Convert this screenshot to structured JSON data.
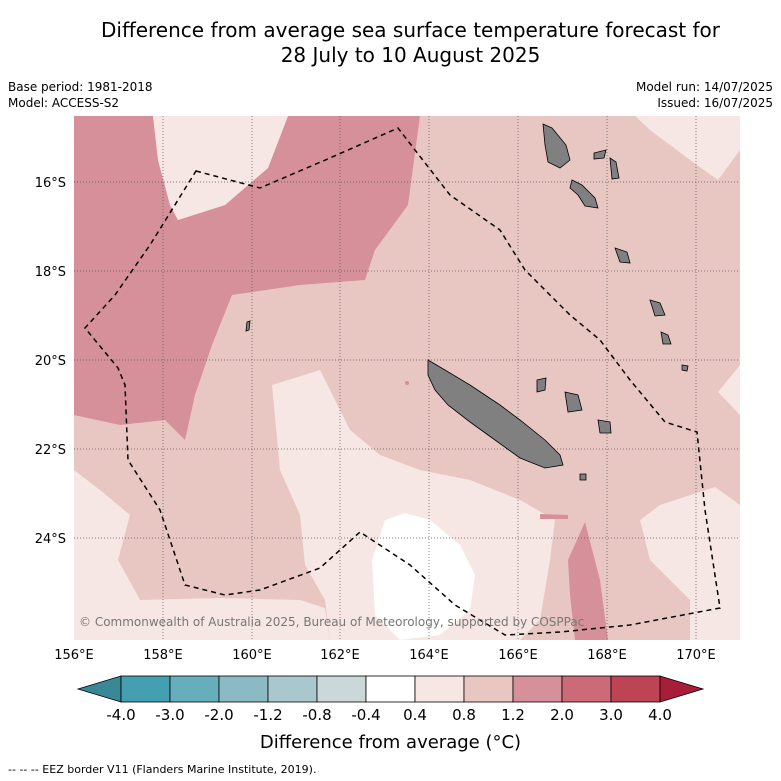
{
  "title_line1": "Difference from average sea surface temperature forecast for",
  "title_line2": "28 July to 10 August 2025",
  "base_period": "Base period: 1981-2018",
  "model": "Model: ACCESS-S2",
  "model_run": "Model run: 14/07/2025",
  "issued": "Issued: 16/07/2025",
  "copyright": "© Commonwealth of Australia 2025, Bureau of Meteorology, supported by COSPPac",
  "lon_ticks": [
    "156°E",
    "158°E",
    "160°E",
    "162°E",
    "164°E",
    "166°E",
    "168°E",
    "170°E"
  ],
  "lat_ticks": [
    "16°S",
    "18°S",
    "20°S",
    "22°S",
    "24°S"
  ],
  "colorbar": {
    "labels": [
      "-4.0",
      "-3.0",
      "-2.0",
      "-1.2",
      "-0.8",
      "-0.4",
      "0.4",
      "0.8",
      "1.2",
      "2.0",
      "3.0",
      "4.0"
    ],
    "colors": [
      "#3a8896",
      "#44a0b0",
      "#66aebc",
      "#8bb9c4",
      "#a9c8cd",
      "#cbd8da",
      "#ffffff",
      "#f6e6e4",
      "#e8c7c2",
      "#d6909a",
      "#cc6a77",
      "#bd4454",
      "#a81e38"
    ],
    "title": "Difference from average (°C)"
  },
  "legend_footer": "--  --  -- EEZ border V11 (Flanders Marine Institute, 2019)."
}
